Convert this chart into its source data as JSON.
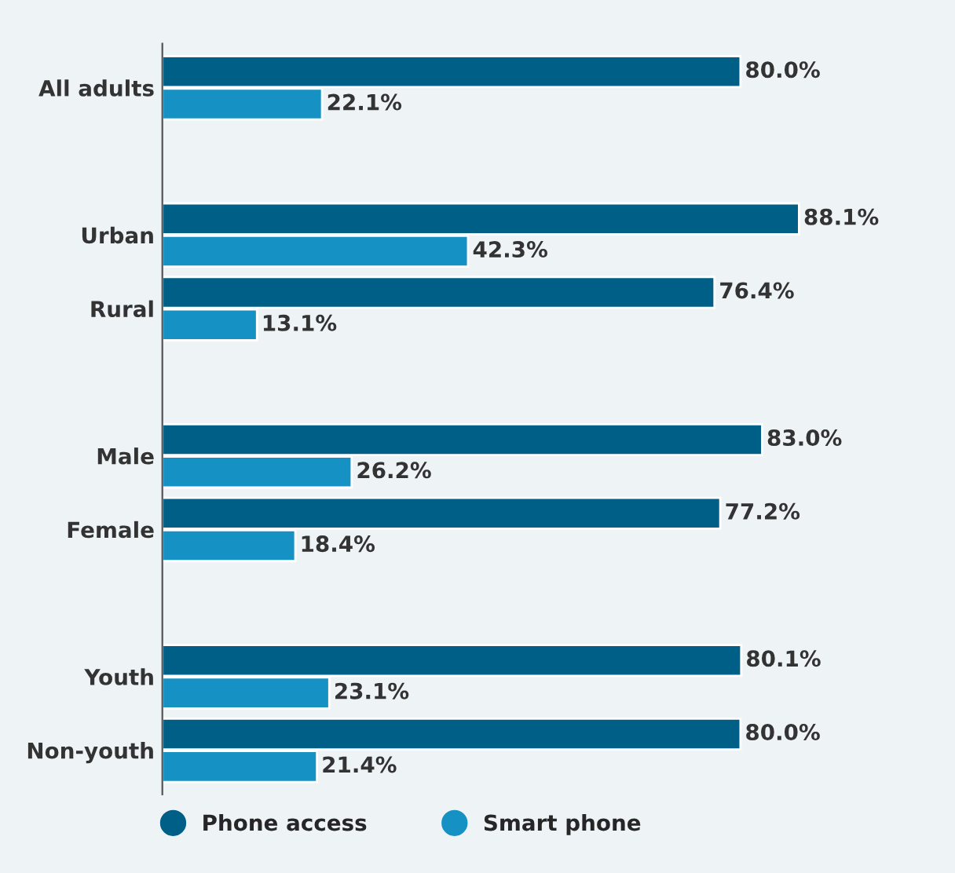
{
  "chart_data": {
    "type": "bar",
    "orientation": "horizontal",
    "legend": "bottom",
    "categories": [
      "All adults",
      null,
      "Urban",
      "Rural",
      null,
      "Male",
      "Female",
      null,
      "Youth",
      "Non-youth"
    ],
    "series": [
      {
        "name": "Phone access",
        "color": "#005f87",
        "values": [
          80.0,
          null,
          88.1,
          76.4,
          null,
          83.0,
          77.2,
          null,
          80.1,
          80.0
        ],
        "value_labels": [
          "80.0%",
          null,
          "88.1%",
          "76.4%",
          null,
          "83.0%",
          "77.2%",
          null,
          "80.1%",
          "80.0%"
        ]
      },
      {
        "name": "Smart phone",
        "color": "#1591c4",
        "values": [
          22.1,
          null,
          42.3,
          13.1,
          null,
          26.2,
          18.4,
          null,
          23.1,
          21.4
        ],
        "value_labels": [
          "22.1%",
          null,
          "42.3%",
          "13.1%",
          null,
          "26.2%",
          "18.4%",
          null,
          "23.1%",
          "21.4%"
        ]
      }
    ]
  }
}
